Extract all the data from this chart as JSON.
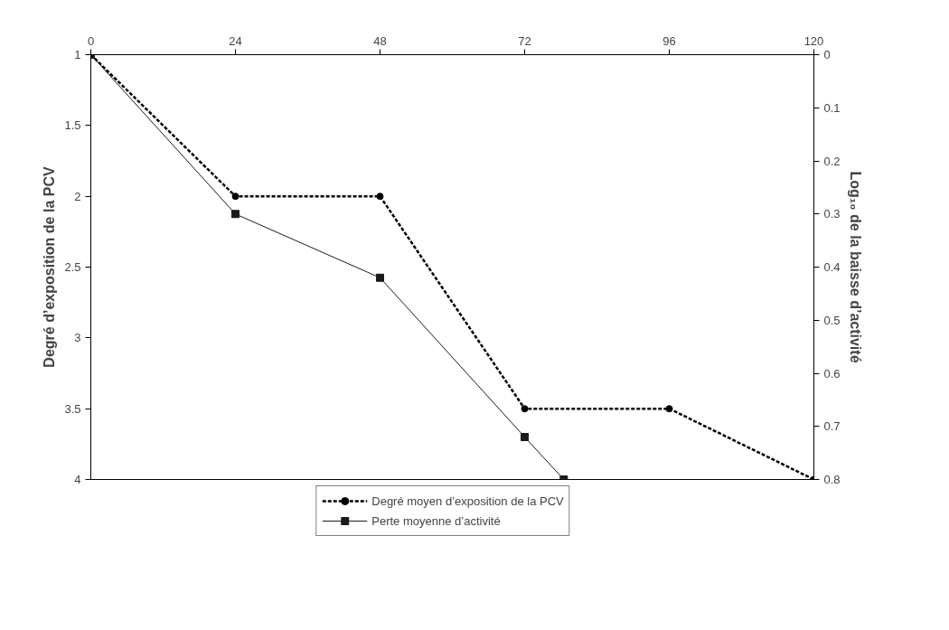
{
  "chart_data": {
    "type": "line",
    "xlim": [
      0,
      120
    ],
    "xticks": [
      0,
      24,
      48,
      72,
      96,
      120
    ],
    "ylim": [
      4,
      1
    ],
    "yticks": [
      1,
      1.5,
      2,
      2.5,
      3,
      3.5,
      4
    ],
    "y2lim": [
      0.8,
      0
    ],
    "y2ticks": [
      0,
      0.1,
      0.2,
      0.3,
      0.4,
      0.5,
      0.6,
      0.7,
      0.8
    ],
    "ylabel": "Degré d’exposition de la PCV",
    "y2label": "Log₁₀ de la baisse d’activité",
    "grid": false,
    "legend": "bottom",
    "series": [
      {
        "name": "Degré moyen d’exposition de la PCV",
        "color": "#000000",
        "x": [
          0,
          24,
          48,
          72,
          96,
          120
        ],
        "values": [
          1,
          2,
          2,
          3.5,
          3.5,
          4
        ],
        "marker": "circle",
        "line_style": "dashed"
      },
      {
        "name": "Perte moyenne d’activité",
        "color": "#1a1a1a",
        "axis": "y2",
        "x": [
          0,
          24,
          48,
          72,
          78.5
        ],
        "values": [
          0,
          0.3,
          0.42,
          0.72,
          0.8
        ],
        "marker": "square",
        "line_style": "solid"
      }
    ]
  }
}
